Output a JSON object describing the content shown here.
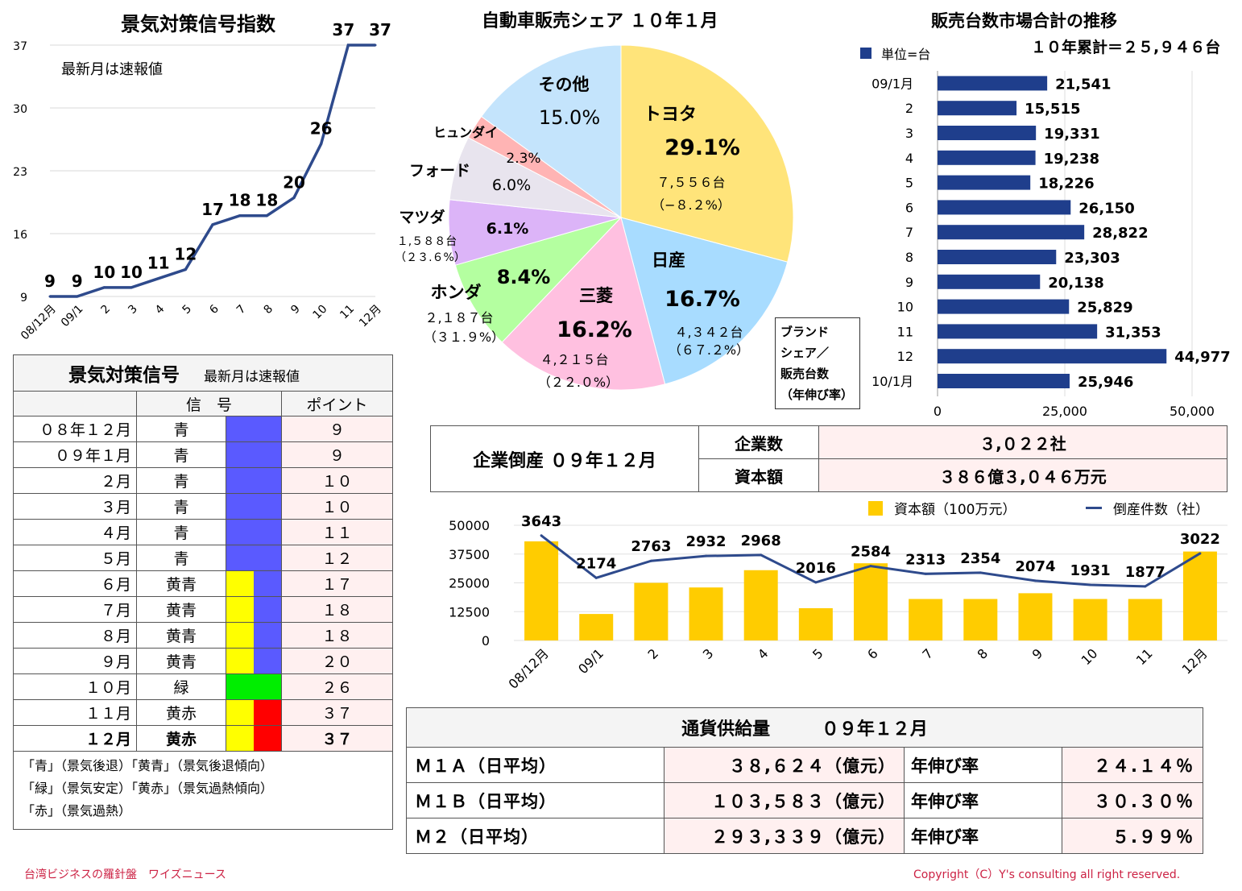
{
  "line_chart": {
    "title": "景気対策信号指数",
    "note": "最新月は速報値"
  },
  "pie_chart": {
    "title": "自動車販売シェア １０年１月",
    "legend_box": [
      "ブランド",
      "シェア／",
      "販売台数",
      "（年伸び率）"
    ]
  },
  "bar_chart": {
    "title": "販売台数市場合計の推移",
    "legend": "単位=台",
    "total_note": "１０年累計＝２５,９４６台"
  },
  "signal_table": {
    "title": "景気対策信号",
    "note": "最新月は速報値",
    "col_signal": "信　号",
    "col_point": "ポイント",
    "rows": [
      {
        "label": "０８年１２月",
        "name": "青",
        "point": "９"
      },
      {
        "label": "０９年１月",
        "name": "青",
        "point": "９"
      },
      {
        "label": "２月",
        "name": "青",
        "point": "１０"
      },
      {
        "label": "３月",
        "name": "青",
        "point": "１０"
      },
      {
        "label": "４月",
        "name": "青",
        "point": "１１"
      },
      {
        "label": "５月",
        "name": "青",
        "point": "１２"
      },
      {
        "label": "６月",
        "name": "黄青",
        "point": "１７"
      },
      {
        "label": "７月",
        "name": "黄青",
        "point": "１８"
      },
      {
        "label": "８月",
        "name": "黄青",
        "point": "１８"
      },
      {
        "label": "９月",
        "name": "黄青",
        "point": "２０"
      },
      {
        "label": "１０月",
        "name": "緑",
        "point": "２６"
      },
      {
        "label": "１１月",
        "name": "黄赤",
        "point": "３７"
      },
      {
        "label": "１２月",
        "name": "黄赤",
        "point": "３７"
      }
    ],
    "legend_lines": [
      "「青」（景気後退）「黄青」（景気後退傾向）",
      "「緑」（景気安定）「黄赤」（景気過熱傾向）",
      "「赤」（景気過熱）"
    ],
    "colors": {
      "blue": "#5a5aff",
      "yellow": "#ffff00",
      "green": "#00ee00",
      "red": "#ff0000"
    }
  },
  "bankruptcy": {
    "title": "企業倒産 ０９年１２月",
    "companies_label": "企業数",
    "companies_value": "３,０２２社",
    "capital_label": "資本額",
    "capital_value": "３８６億３,０４６万元"
  },
  "combo_chart": {
    "legend_bar": "資本額（100万元）",
    "legend_line": "倒産件数（社）"
  },
  "money_supply": {
    "title": "通貨供給量",
    "period": "０９年１２月",
    "growth_label": "年伸び率",
    "rows": [
      {
        "name": "Ｍ１Ａ（日平均）",
        "value": "３８,６２４（億元）",
        "growth": "２４.１４％"
      },
      {
        "name": "Ｍ１Ｂ（日平均）",
        "value": "１０３,５８３（億元）",
        "growth": "３０.３０％"
      },
      {
        "name": "Ｍ２（日平均）",
        "value": "２９３,３３９（億元）",
        "growth": "５.９９％"
      }
    ]
  },
  "footer": {
    "left": "台湾ビジネスの羅針盤　ワイズニュース",
    "right": "Copyright（C）Y's consulting all right reserved."
  },
  "chart_data": [
    {
      "type": "line",
      "title": "景気対策信号指数",
      "x": [
        "08/12月",
        "09/1",
        "2",
        "3",
        "4",
        "5",
        "6",
        "7",
        "8",
        "9",
        "10",
        "11",
        "12月"
      ],
      "y_ticks": [
        "9",
        "16",
        "23",
        "30",
        "37"
      ],
      "values": [
        9,
        9,
        10,
        10,
        11,
        12,
        17,
        18,
        18,
        20,
        26,
        37,
        37
      ],
      "data_labels": [
        "9",
        "9",
        "10",
        "10",
        "11",
        "12",
        "17",
        "18",
        "18",
        "20",
        "26",
        "37",
        "37"
      ],
      "ylim": [
        9,
        37
      ],
      "color": "#2e4a8c"
    },
    {
      "type": "pie",
      "title": "自動車販売シェア １０年１月",
      "slices": [
        {
          "name": "トヨタ",
          "pct": "29.1%",
          "value": 29.1,
          "sub": "７,５５６台",
          "sub2": "（−８.２%）",
          "color": "#ffe47a"
        },
        {
          "name": "日産",
          "pct": "16.7%",
          "value": 16.7,
          "sub": "４,３４２台",
          "sub2": "（６７.２%）",
          "color": "#a8dcff"
        },
        {
          "name": "三菱",
          "pct": "16.2%",
          "value": 16.2,
          "sub": "４,２１５台",
          "sub2": "（２２.０%）",
          "color": "#ffc0e0"
        },
        {
          "name": "ホンダ",
          "pct": "8.4%",
          "value": 8.4,
          "sub": "２,１８７台",
          "sub2": "（３１.９%）",
          "color": "#b4ffa0"
        },
        {
          "name": "マツダ",
          "pct": "6.1%",
          "value": 6.1,
          "sub": "１,５８８台",
          "sub2": "（２３.６%）",
          "color": "#dcb4f8"
        },
        {
          "name": "フォード",
          "pct": "6.0%",
          "value": 6.0,
          "sub": "",
          "sub2": "",
          "color": "#e8e4ee"
        },
        {
          "name": "ヒュンダイ",
          "pct": "2.3%",
          "value": 2.3,
          "sub": "",
          "sub2": "",
          "color": "#ffb4b4"
        },
        {
          "name": "その他",
          "pct": "15.0%",
          "value": 15.0,
          "sub": "",
          "sub2": "",
          "color": "#c4e4fc"
        }
      ]
    },
    {
      "type": "bar",
      "orientation": "horizontal",
      "title": "販売台数市場合計の推移",
      "categories": [
        "09/1月",
        "2",
        "3",
        "4",
        "5",
        "6",
        "7",
        "8",
        "9",
        "10",
        "11",
        "12",
        "10/1月"
      ],
      "values": [
        21541,
        15515,
        19331,
        19238,
        18226,
        26150,
        28822,
        23303,
        20138,
        25829,
        31353,
        44977,
        25946
      ],
      "labels": [
        "21,541",
        "15,515",
        "19,331",
        "19,238",
        "18,226",
        "26,150",
        "28,822",
        "23,303",
        "20,138",
        "25,829",
        "31,353",
        "44,977",
        "25,946"
      ],
      "x_ticks": [
        "0",
        "25,000",
        "50,000"
      ],
      "xlim": [
        0,
        50000
      ],
      "color": "#1f3e8c"
    },
    {
      "type": "bar+line",
      "categories": [
        "08/12月",
        "09/1",
        "2",
        "3",
        "4",
        "5",
        "6",
        "7",
        "8",
        "9",
        "10",
        "11",
        "12月"
      ],
      "series": [
        {
          "name": "資本額（100万元）",
          "type": "bar",
          "values": [
            43000,
            11500,
            25000,
            23000,
            30500,
            14000,
            33500,
            18000,
            18000,
            20500,
            18000,
            18000,
            38600
          ],
          "color": "#ffcc00"
        },
        {
          "name": "倒産件数（社）",
          "type": "line",
          "values": [
            3643,
            2174,
            2763,
            2932,
            2968,
            2016,
            2584,
            2313,
            2354,
            2074,
            1931,
            1877,
            3022
          ],
          "labels": [
            "3643",
            "2174",
            "2763",
            "2932",
            "2968",
            "2016",
            "2584",
            "2313",
            "2354",
            "2074",
            "1931",
            "1877",
            "3022"
          ],
          "color": "#2e4a8c"
        }
      ],
      "y_ticks": [
        "50000",
        "37500",
        "25000",
        "12500",
        "0"
      ],
      "ylim_bar": [
        0,
        50000
      ],
      "ylim_line": [
        0,
        4000
      ]
    }
  ]
}
